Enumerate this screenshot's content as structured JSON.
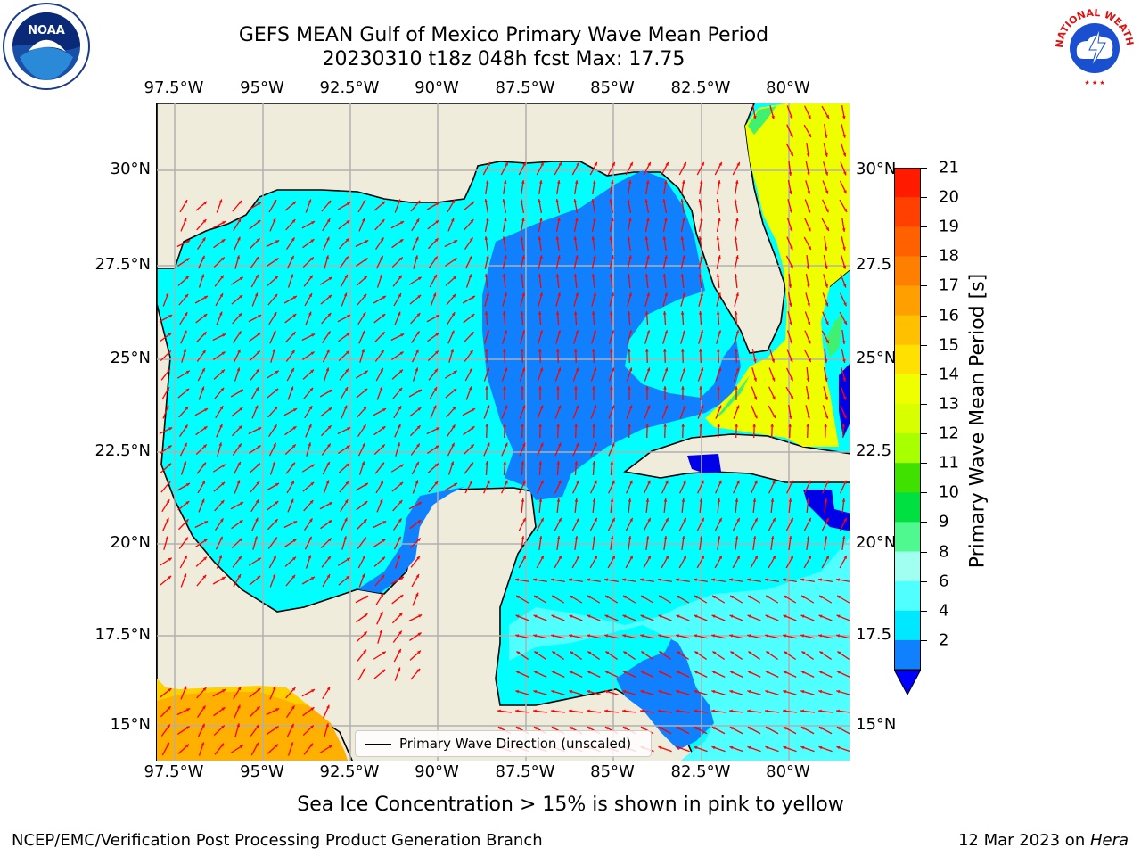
{
  "title": {
    "line1": "GEFS MEAN Gulf of Mexico Primary Wave Mean Period",
    "line2": "20230310 t18z 048h fcst   Max: 17.75"
  },
  "logos": {
    "left": {
      "icon": "noaa-logo-icon",
      "text": "NOAA"
    },
    "right": {
      "icon": "nws-logo-icon",
      "text": "NATIONAL WEATHER SERVICE"
    }
  },
  "map": {
    "lon_ticks": [
      "97.5°W",
      "95°W",
      "92.5°W",
      "90°W",
      "87.5°W",
      "85°W",
      "82.5°W",
      "80°W"
    ],
    "lat_ticks_left": [
      "30°N",
      "27.5°N",
      "25°N",
      "22.5°N",
      "20°N",
      "17.5°N",
      "15°N"
    ],
    "lat_ticks_right": [
      "30°N",
      "27.5",
      "25°N",
      "22.5",
      "20°N",
      "17.5",
      "15°N"
    ],
    "legend_label": "Primary Wave Direction (unscaled)",
    "colors": {
      "land": "#efecdc",
      "grid": "#b0b0b0",
      "arrow": "#ff0000",
      "coast": "#000000"
    }
  },
  "colorbar": {
    "label": "Primary Wave Mean Period [s]",
    "ticks": [
      "21",
      "20",
      "19",
      "18",
      "17",
      "16",
      "15",
      "14",
      "13",
      "12",
      "11",
      "10",
      "9",
      "8",
      "6",
      "4",
      "2"
    ],
    "colors": [
      "#ff1a00",
      "#ff4000",
      "#ff6000",
      "#ff8000",
      "#ffa000",
      "#ffc000",
      "#ffe000",
      "#f0ff00",
      "#d8ff00",
      "#a8ff00",
      "#40e000",
      "#00e040",
      "#50f890",
      "#a0fff0",
      "#50ffff",
      "#00e8ff",
      "#1080ff"
    ],
    "under_color": "#0000ff"
  },
  "footer": {
    "note": "Sea Ice Concentration > 15% is shown in pink to yellow",
    "credit": "NCEP/EMC/Verification Post Processing Product Generation Branch",
    "date": "12 Mar 2023 on ",
    "host": "Hera"
  }
}
